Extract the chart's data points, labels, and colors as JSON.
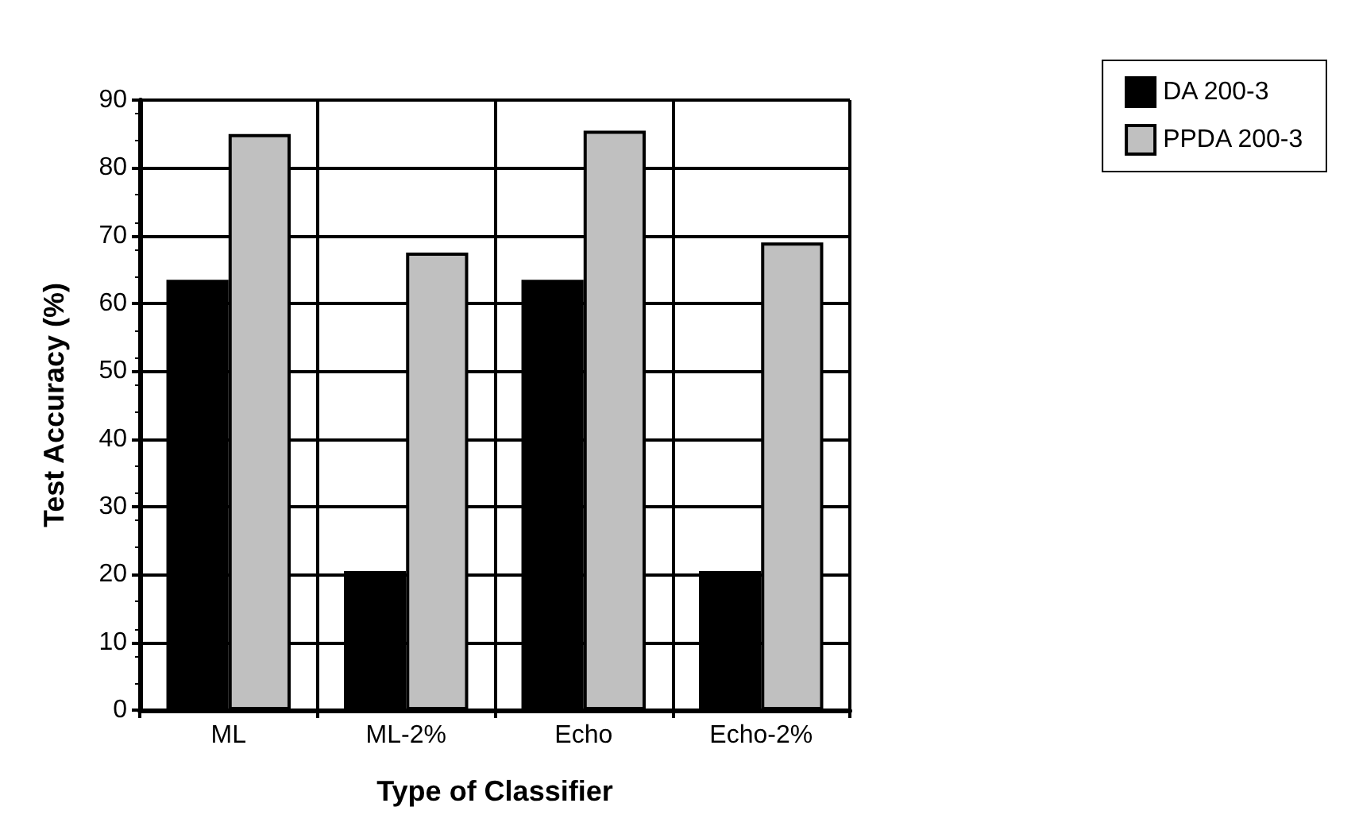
{
  "chart_data": {
    "type": "bar",
    "xlabel": "Type of Classifier",
    "ylabel": "Test Accuracy (%)",
    "categories": [
      "ML",
      "ML-2%",
      "Echo",
      "Echo-2%"
    ],
    "series": [
      {
        "name": "DA 200-3",
        "color": "#000000",
        "values": [
          63.5,
          20.5,
          63.5,
          20.5
        ]
      },
      {
        "name": "PPDA 200-3",
        "color": "#c0c0c0",
        "values": [
          85,
          67.5,
          85.5,
          69
        ]
      }
    ],
    "ylim": [
      0,
      90
    ],
    "yticks": [
      0,
      10,
      20,
      30,
      40,
      50,
      60,
      70,
      80,
      90
    ],
    "grid": true,
    "legend": "top right"
  }
}
